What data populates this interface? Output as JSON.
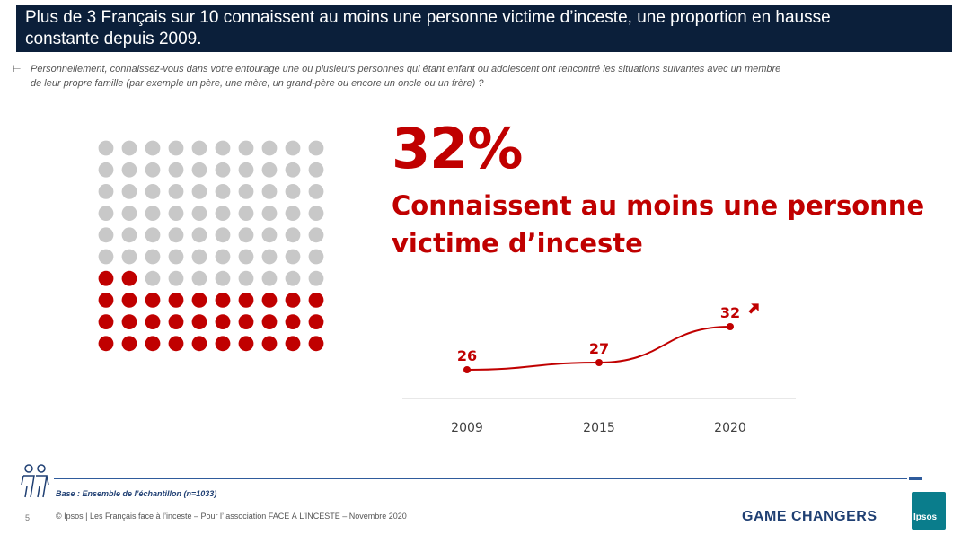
{
  "header": {
    "title_line1": "Plus de 3 Français sur 10 connaissent au moins une personne victime d’inceste, une proportion en hausse",
    "title_line2": "constante depuis 2009."
  },
  "question": {
    "marker": "⊢",
    "line1": "Personnellement, connaissez-vous dans votre entourage une ou plusieurs personnes qui étant enfant ou adolescent ont rencontré les situations suivantes avec un membre",
    "line2": "de leur propre famille (par exemple un père, une mère, un grand-père ou encore un oncle ou un frère) ?"
  },
  "headline": {
    "percent": "32%",
    "sub_line1": "Connaissent au moins une personne",
    "sub_line2": "victime d’inceste"
  },
  "footer": {
    "base": "Base : Ensemble de l’échantillon (n=1033)",
    "page_number": "5",
    "copyright": "© Ipsos | Les Français face à l’inceste – Pour l’ association FACE À L’INCESTE – Novembre 2020",
    "tagline": "GAME CHANGERS",
    "logo_text": "Ipsos"
  },
  "colors": {
    "accent": "#c00000",
    "dot_grey": "#c8c8c8",
    "header_bg": "#0b1f3a",
    "footer_blue": "#1f3f73",
    "logo": "#0a7d8c"
  },
  "icons": [
    "people-icon",
    "trend-up-arrow-icon"
  ],
  "chart_data": [
    {
      "type": "waffle",
      "total": 100,
      "highlighted": 32,
      "rows": 10,
      "cols": 10
    },
    {
      "type": "line",
      "categories": [
        "2009",
        "2015",
        "2020"
      ],
      "values": [
        26,
        27,
        32
      ],
      "data_labels": [
        "26",
        "27",
        "32"
      ],
      "trend": "up"
    }
  ]
}
